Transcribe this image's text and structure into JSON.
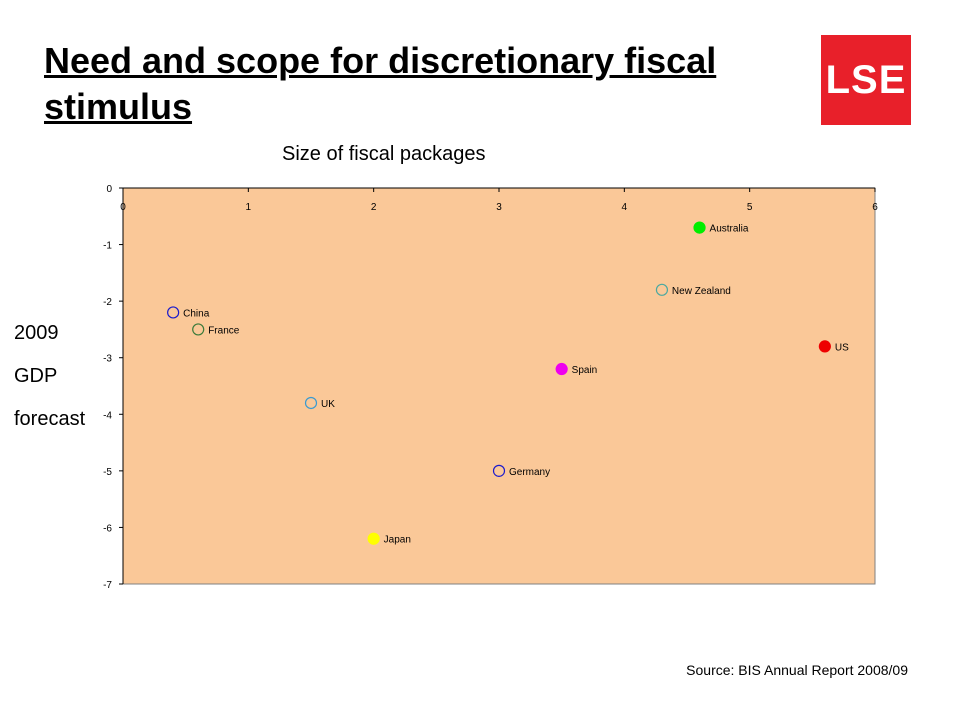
{
  "slide": {
    "title": "Need and scope for discretionary fiscal stimulus",
    "logo_text": "LSE",
    "source": "Source: BIS Annual Report 2008/09"
  },
  "colors": {
    "plot_bg": "#fac898",
    "logo_bg": "#e8202a"
  },
  "chart_data": {
    "type": "scatter",
    "title": "Size of fiscal packages",
    "ylabel_lines": [
      "2009",
      "GDP",
      "forecast"
    ],
    "xlim": [
      0,
      6
    ],
    "ylim": [
      -7,
      0
    ],
    "x_ticks": [
      0,
      1,
      2,
      3,
      4,
      5,
      6
    ],
    "y_ticks": [
      0,
      -1,
      -2,
      -3,
      -4,
      -5,
      -6,
      -7
    ],
    "grid": false,
    "points": [
      {
        "label": "Australia",
        "x": 4.6,
        "y": -0.7,
        "color": "#00ee00",
        "filled": true
      },
      {
        "label": "New Zealand",
        "x": 4.3,
        "y": -1.8,
        "color": "#4aa8a0",
        "filled": false
      },
      {
        "label": "China",
        "x": 0.4,
        "y": -2.2,
        "color": "#1a1acc",
        "filled": false
      },
      {
        "label": "France",
        "x": 0.6,
        "y": -2.5,
        "color": "#3a7a3a",
        "filled": false
      },
      {
        "label": "US",
        "x": 5.6,
        "y": -2.8,
        "color": "#ee0000",
        "filled": true
      },
      {
        "label": "Spain",
        "x": 3.5,
        "y": -3.2,
        "color": "#ee00ee",
        "filled": true
      },
      {
        "label": "UK",
        "x": 1.5,
        "y": -3.8,
        "color": "#3a9ad0",
        "filled": false
      },
      {
        "label": "Germany",
        "x": 3.0,
        "y": -5.0,
        "color": "#1a1acc",
        "filled": false
      },
      {
        "label": "Japan",
        "x": 2.0,
        "y": -6.2,
        "color": "#ffff00",
        "filled": true
      }
    ]
  }
}
